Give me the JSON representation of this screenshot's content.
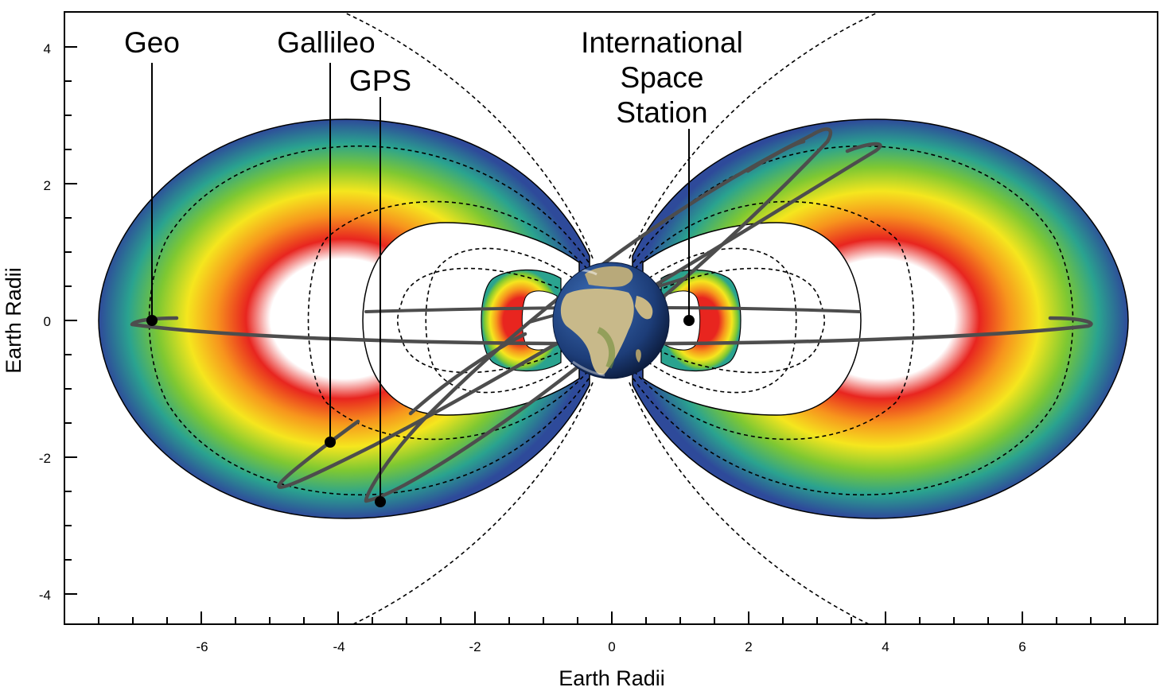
{
  "axes": {
    "xlabel": "Earth Radii",
    "ylabel": "Earth Radii",
    "x_ticks": [
      "-6",
      "-4",
      "-2",
      "0",
      "2",
      "4",
      "6"
    ],
    "y_ticks": [
      "4",
      "2",
      "0",
      "-2",
      "-4"
    ]
  },
  "labels": {
    "geo": "Geo",
    "galileo": "Gallileo",
    "gps": "GPS",
    "iss_line1": "International",
    "iss_line2": "Space",
    "iss_line3": "Station"
  },
  "colors": {
    "belt_gradient": [
      "#ffffff",
      "#2e4a9a",
      "#2aa38f",
      "#7ec832",
      "#f5e61e",
      "#f7941d",
      "#e8251f"
    ],
    "orbit": "#4d4d4d",
    "earth_ocean": "#1d3d78",
    "earth_land": "#c8b98a",
    "field_lines": "#000000"
  },
  "icons": {
    "earth": "earth-globe-icon",
    "satellite_marker": "dot-icon"
  }
}
